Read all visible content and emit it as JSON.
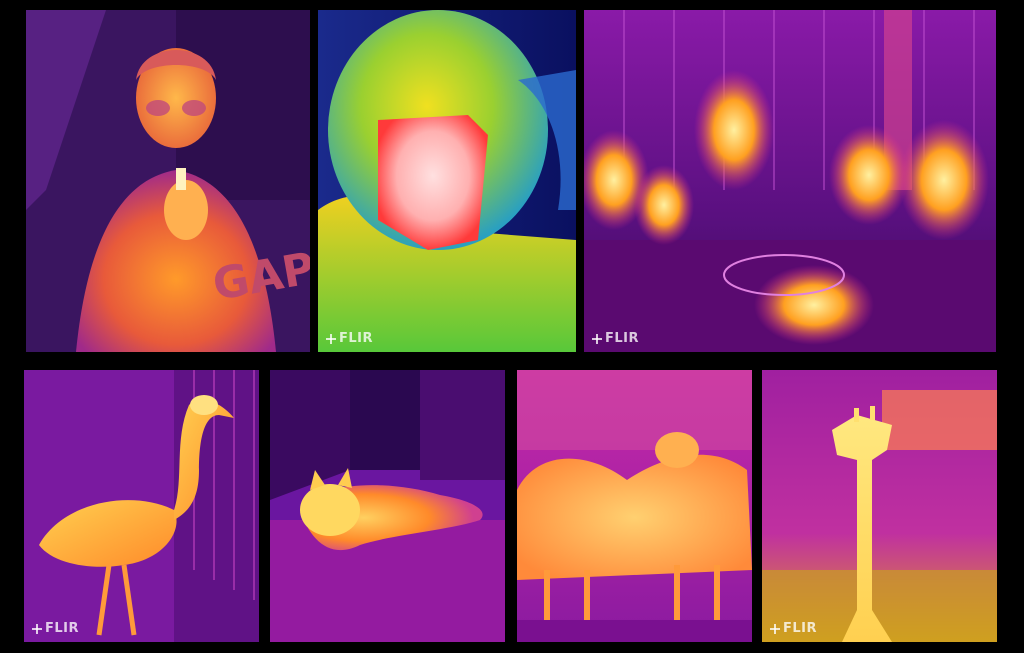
{
  "collage": {
    "watermark_text": "FLIR",
    "panels": [
      {
        "subject": "person-holding-lighter",
        "palette": "iron",
        "watermark": false
      },
      {
        "subject": "person-face-closeup",
        "palette": "rainbow",
        "watermark": true
      },
      {
        "subject": "people-at-table",
        "palette": "iron",
        "watermark": true
      },
      {
        "subject": "crane-bird",
        "palette": "iron",
        "watermark": true
      },
      {
        "subject": "cat-on-floor",
        "palette": "iron",
        "watermark": false
      },
      {
        "subject": "camels",
        "palette": "iron",
        "watermark": false
      },
      {
        "subject": "giraffe-statue",
        "palette": "iron",
        "watermark": true
      }
    ]
  },
  "colors": {
    "background": "#000000",
    "iron_cold": "#3a0f6e",
    "iron_mid": "#c0179f",
    "iron_warm": "#ff7a1a",
    "iron_hot": "#ffe27a",
    "rainbow_cold": "#1a2a8c",
    "rainbow_mid": "#58c83a",
    "rainbow_hot": "#ff2a2a"
  }
}
